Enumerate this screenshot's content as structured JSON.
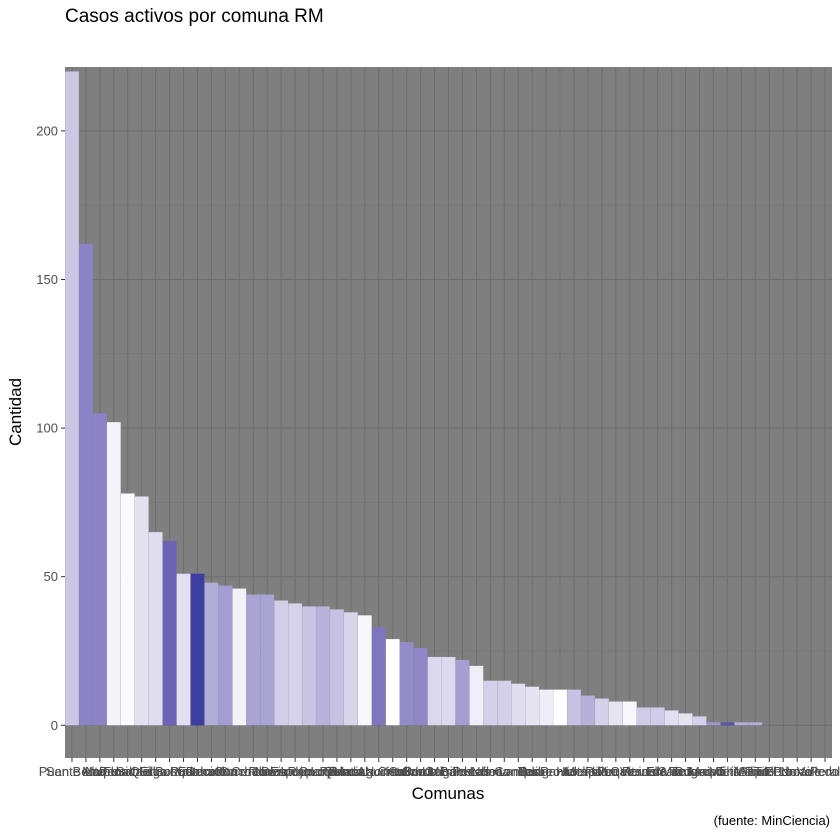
{
  "chart_data": {
    "type": "bar",
    "title": "Casos activos por comuna RM",
    "xlabel": "Comunas",
    "ylabel": "Cantidad",
    "caption": "(fuente: MinCiencia)",
    "ylim": [
      -11,
      221.5
    ],
    "yticks": [
      0,
      50,
      100,
      150,
      200
    ],
    "grid": true,
    "panel_background": "#7f7f7f",
    "legend": "none",
    "categories": [
      "Puente Alto",
      "San Bernardo",
      "Maipu",
      "La Florida",
      "Penalolen",
      "Santiago",
      "Quilicura",
      "El Bosque",
      "La Pintana",
      "Pudahuel",
      "Recoleta",
      "Estacion Central",
      "Conchali",
      "Cerro Navia",
      "Renca",
      "Lo Espejo",
      "San Ramon",
      "La Granja",
      "Independencia",
      "Lo Prado",
      "Macul",
      "Quinta Normal",
      "Pedro Aguirre Cerda",
      "La Cisterna",
      "Colina",
      "Huechuraba",
      "San Miguel",
      "Cerrillos",
      "Lo Barnechea",
      "Penaflor",
      "Nunoa",
      "Las Condes",
      "Lampa",
      "Buin",
      "Talagante",
      "Padre Hurtado",
      "Providencia",
      "Melipilla",
      "Paine",
      "Pirque",
      "La Reina",
      "Vitacura",
      "Calera de Tango",
      "El Monte",
      "Isla de Maipo",
      "Curacavi",
      "San Jose de Maipo",
      "Tiltil",
      "Maria Pinto",
      "Alhue",
      "San Pedro",
      "Tiltil Norte",
      "Pomaire",
      "Lo Valledor",
      "Peral"
    ],
    "values": [
      220,
      162,
      105,
      102,
      78,
      77,
      65,
      62,
      51,
      51,
      48,
      47,
      46,
      44,
      44,
      42,
      41,
      40,
      40,
      39,
      38,
      37,
      33,
      29,
      28,
      26,
      23,
      23,
      22,
      20,
      15,
      15,
      14,
      13,
      12,
      12,
      12,
      10,
      9,
      8,
      8,
      6,
      6,
      5,
      4,
      3,
      1,
      1,
      1,
      1,
      0,
      0,
      0,
      0,
      0
    ],
    "colors": [
      "#ccc8e4",
      "#8b83c4",
      "#8b83c4",
      "#f4f3fa",
      "#fbfafd",
      "#e4e1f1",
      "#e0ddf0",
      "#6c63b4",
      "#e2dff1",
      "#3d3fa0",
      "#b2acd8",
      "#a39dd1",
      "#f3f2f9",
      "#aaa4d5",
      "#aaa4d5",
      "#d2cee8",
      "#d6d2ea",
      "#cac5e4",
      "#b9b3db",
      "#c7c2e3",
      "#d9d6ec",
      "#f8f7fc",
      "#7f77bd",
      "#ffffff",
      "#948cc8",
      "#8f87c6",
      "#dcd9ee",
      "#dcd9ee",
      "#a49ed1",
      "#f0eff8",
      "#d4d0e9",
      "#d4d0e9",
      "#e0ddf0",
      "#e6e4f2",
      "#efeef7",
      "#ffffff",
      "#c7c2e3",
      "#b7b1da",
      "#d5d1ea",
      "#e6e4f2",
      "#f8f7fc",
      "#d0cbe7",
      "#d0cbe7",
      "#e2dff1",
      "#e6e4f2",
      "#d5d1ea",
      "#9e98cf",
      "#5e55ab",
      "#b2acd8",
      "#b2acd8",
      "#cfcae6",
      "#cfcae6",
      "#cfcae6",
      "#cfcae6",
      "#cfcae6"
    ]
  }
}
